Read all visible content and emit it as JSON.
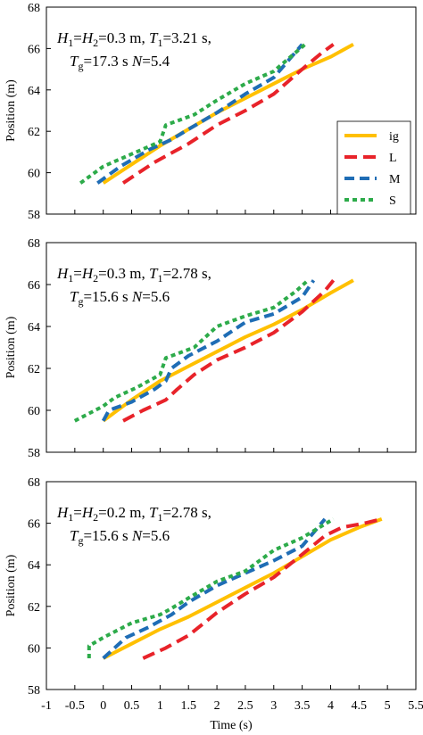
{
  "chart_data": [
    {
      "type": "line",
      "annotation": [
        [
          {
            "t": "H",
            "i": true
          },
          {
            "t": "1",
            "sub": true
          },
          {
            "t": "="
          },
          {
            "t": "H",
            "i": true
          },
          {
            "t": "2",
            "sub": true
          },
          {
            "t": "=0.3 m, "
          },
          {
            "t": "T",
            "i": true
          },
          {
            "t": "1",
            "sub": true
          },
          {
            "t": "=3.21 s,"
          }
        ],
        [
          {
            "t": "T",
            "i": true
          },
          {
            "t": "g",
            "sub": true
          },
          {
            "t": "=17.3 s "
          },
          {
            "t": "N",
            "i": true
          },
          {
            "t": "=5.4"
          }
        ]
      ],
      "ylabel": "Position (m)",
      "ylim": [
        58,
        68
      ],
      "yticks": [
        "58",
        "60",
        "62",
        "64",
        "66",
        "68"
      ],
      "xlim": [
        -1,
        5.5
      ],
      "legend": {
        "placement": "right",
        "entries": [
          "ig",
          "L",
          "M",
          "S"
        ]
      },
      "series": [
        {
          "name": "ig",
          "color": "#FFC000",
          "dash": "solid",
          "points": [
            [
              0,
              59.5
            ],
            [
              0.5,
              60.4
            ],
            [
              1,
              61.3
            ],
            [
              1.5,
              62.1
            ],
            [
              2,
              62.9
            ],
            [
              2.5,
              63.6
            ],
            [
              3,
              64.3
            ],
            [
              3.5,
              65.0
            ],
            [
              4,
              65.6
            ],
            [
              4.4,
              66.2
            ]
          ]
        },
        {
          "name": "L",
          "color": "#E8232A",
          "dash": "long",
          "points": [
            [
              0.35,
              59.5
            ],
            [
              0.9,
              60.5
            ],
            [
              1.5,
              61.4
            ],
            [
              2,
              62.3
            ],
            [
              2.5,
              63.0
            ],
            [
              3,
              63.8
            ],
            [
              3.5,
              65.0
            ],
            [
              3.85,
              65.8
            ],
            [
              4.05,
              66.2
            ]
          ]
        },
        {
          "name": "M",
          "color": "#1F6DB5",
          "dash": "medium",
          "points": [
            [
              -0.1,
              59.5
            ],
            [
              0.3,
              60.3
            ],
            [
              0.8,
              61.1
            ],
            [
              1.2,
              61.6
            ],
            [
              1.5,
              62.1
            ],
            [
              2,
              62.9
            ],
            [
              2.5,
              63.8
            ],
            [
              3,
              64.6
            ],
            [
              3.5,
              66.2
            ]
          ]
        },
        {
          "name": "S",
          "color": "#2DAB4A",
          "dash": "short",
          "points": [
            [
              -0.4,
              59.5
            ],
            [
              0,
              60.3
            ],
            [
              0.5,
              60.9
            ],
            [
              1,
              61.5
            ],
            [
              1.1,
              62.3
            ],
            [
              1.6,
              62.8
            ],
            [
              2,
              63.5
            ],
            [
              2.5,
              64.3
            ],
            [
              3,
              64.9
            ],
            [
              3.55,
              66.2
            ]
          ]
        }
      ]
    },
    {
      "type": "line",
      "annotation": [
        [
          {
            "t": "H",
            "i": true
          },
          {
            "t": "1",
            "sub": true
          },
          {
            "t": "="
          },
          {
            "t": "H",
            "i": true
          },
          {
            "t": "2",
            "sub": true
          },
          {
            "t": "=0.3 m, "
          },
          {
            "t": "T",
            "i": true
          },
          {
            "t": "1",
            "sub": true
          },
          {
            "t": "=2.78 s,"
          }
        ],
        [
          {
            "t": "T",
            "i": true
          },
          {
            "t": "g",
            "sub": true
          },
          {
            "t": "=15.6 s "
          },
          {
            "t": "N",
            "i": true
          },
          {
            "t": "=5.6"
          }
        ]
      ],
      "ylabel": "Position (m)",
      "ylim": [
        58,
        68
      ],
      "yticks": [
        "58",
        "60",
        "62",
        "64",
        "66",
        "68"
      ],
      "xlim": [
        -1,
        5.5
      ],
      "series": [
        {
          "name": "ig",
          "color": "#FFC000",
          "dash": "solid",
          "points": [
            [
              0,
              59.5
            ],
            [
              0.5,
              60.5
            ],
            [
              1,
              61.4
            ],
            [
              1.5,
              62.1
            ],
            [
              2,
              62.8
            ],
            [
              2.5,
              63.5
            ],
            [
              3,
              64.1
            ],
            [
              3.5,
              64.8
            ],
            [
              4,
              65.6
            ],
            [
              4.4,
              66.2
            ]
          ]
        },
        {
          "name": "L",
          "color": "#E8232A",
          "dash": "long",
          "points": [
            [
              0.35,
              59.5
            ],
            [
              0.7,
              60.0
            ],
            [
              1.1,
              60.5
            ],
            [
              1.3,
              61.0
            ],
            [
              1.6,
              61.7
            ],
            [
              2,
              62.4
            ],
            [
              2.5,
              63.0
            ],
            [
              3,
              63.7
            ],
            [
              3.5,
              64.7
            ],
            [
              3.9,
              65.7
            ],
            [
              4.05,
              66.2
            ]
          ]
        },
        {
          "name": "M",
          "color": "#1F6DB5",
          "dash": "medium",
          "points": [
            [
              0,
              59.5
            ],
            [
              0.1,
              60.0
            ],
            [
              0.5,
              60.4
            ],
            [
              0.9,
              61.0
            ],
            [
              1.1,
              61.4
            ],
            [
              1.2,
              62.0
            ],
            [
              1.5,
              62.6
            ],
            [
              2,
              63.3
            ],
            [
              2.5,
              64.2
            ],
            [
              3,
              64.6
            ],
            [
              3.5,
              65.4
            ],
            [
              3.7,
              66.2
            ]
          ]
        },
        {
          "name": "S",
          "color": "#2DAB4A",
          "dash": "short",
          "points": [
            [
              -0.5,
              59.5
            ],
            [
              0,
              60.2
            ],
            [
              0.2,
              60.6
            ],
            [
              0.6,
              61.1
            ],
            [
              1,
              61.7
            ],
            [
              1.1,
              62.5
            ],
            [
              1.6,
              63.0
            ],
            [
              2,
              64.0
            ],
            [
              2.5,
              64.5
            ],
            [
              3,
              64.9
            ],
            [
              3.4,
              65.7
            ],
            [
              3.6,
              66.2
            ]
          ]
        }
      ]
    },
    {
      "type": "line",
      "annotation": [
        [
          {
            "t": "H",
            "i": true
          },
          {
            "t": "1",
            "sub": true
          },
          {
            "t": "="
          },
          {
            "t": "H",
            "i": true
          },
          {
            "t": "2",
            "sub": true
          },
          {
            "t": "=0.2 m, "
          },
          {
            "t": "T",
            "i": true
          },
          {
            "t": "1",
            "sub": true
          },
          {
            "t": "=2.78 s,"
          }
        ],
        [
          {
            "t": "T",
            "i": true
          },
          {
            "t": "g",
            "sub": true
          },
          {
            "t": "=15.6 s "
          },
          {
            "t": "N",
            "i": true
          },
          {
            "t": "=5.6"
          }
        ]
      ],
      "ylabel": "Position (m)",
      "xlabel": "Time (s)",
      "ylim": [
        58,
        68
      ],
      "yticks": [
        "58",
        "60",
        "62",
        "64",
        "66",
        "68"
      ],
      "xlim": [
        -1,
        5.5
      ],
      "xticks": [
        "-1",
        "-0.5",
        "0",
        "0.5",
        "1",
        "1.5",
        "2",
        "2.5",
        "3",
        "3.5",
        "4",
        "4.5",
        "5",
        "5.5"
      ],
      "series": [
        {
          "name": "ig",
          "color": "#FFC000",
          "dash": "solid",
          "points": [
            [
              0,
              59.5
            ],
            [
              0.5,
              60.2
            ],
            [
              1,
              60.9
            ],
            [
              1.5,
              61.5
            ],
            [
              2,
              62.2
            ],
            [
              2.5,
              62.9
            ],
            [
              3,
              63.6
            ],
            [
              3.5,
              64.4
            ],
            [
              4,
              65.2
            ],
            [
              4.5,
              65.8
            ],
            [
              4.9,
              66.2
            ]
          ]
        },
        {
          "name": "L",
          "color": "#E8232A",
          "dash": "long",
          "points": [
            [
              0.7,
              59.5
            ],
            [
              1.1,
              60.0
            ],
            [
              1.5,
              60.6
            ],
            [
              2,
              61.7
            ],
            [
              2.5,
              62.6
            ],
            [
              3,
              63.4
            ],
            [
              3.5,
              64.5
            ],
            [
              3.9,
              65.4
            ],
            [
              4.2,
              65.8
            ],
            [
              4.6,
              66.0
            ],
            [
              4.9,
              66.2
            ]
          ]
        },
        {
          "name": "M",
          "color": "#1F6DB5",
          "dash": "medium",
          "points": [
            [
              0,
              59.5
            ],
            [
              0.4,
              60.5
            ],
            [
              0.8,
              61.0
            ],
            [
              1.2,
              61.6
            ],
            [
              1.5,
              62.2
            ],
            [
              2,
              63.0
            ],
            [
              2.5,
              63.6
            ],
            [
              3,
              64.2
            ],
            [
              3.5,
              64.9
            ],
            [
              3.9,
              66.2
            ]
          ]
        },
        {
          "name": "S",
          "color": "#2DAB4A",
          "dash": "short",
          "points": [
            [
              -0.25,
              59.5
            ],
            [
              -0.25,
              60.1
            ],
            [
              0,
              60.5
            ],
            [
              0.5,
              61.2
            ],
            [
              1,
              61.6
            ],
            [
              1.2,
              61.9
            ],
            [
              1.5,
              62.4
            ],
            [
              2,
              63.2
            ],
            [
              2.5,
              63.7
            ],
            [
              3,
              64.7
            ],
            [
              3.5,
              65.3
            ],
            [
              4.05,
              66.2
            ]
          ]
        }
      ]
    }
  ]
}
